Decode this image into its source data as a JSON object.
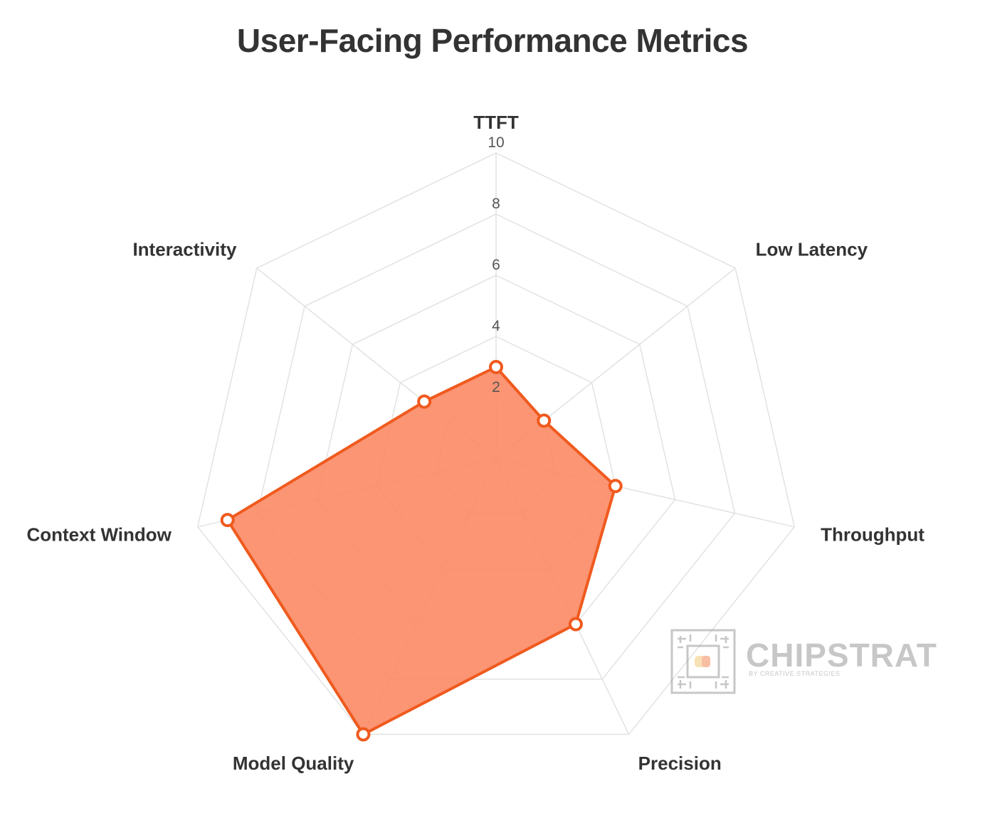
{
  "chart_data": {
    "type": "radar",
    "title": "User-Facing Performance Metrics",
    "categories": [
      "TTFT",
      "Low Latency",
      "Throughput",
      "Precision",
      "Model Quality",
      "Context Window",
      "Interactivity"
    ],
    "series": [
      {
        "values": [
          3,
          2,
          4,
          6,
          10,
          9,
          3
        ]
      }
    ],
    "rlim": [
      0,
      10
    ],
    "ticks": [
      "2",
      "4",
      "6",
      "8",
      "10"
    ],
    "grid": true,
    "colors": {
      "line": "#f05a1e",
      "fill": "#fb8a65",
      "grid": "#e2e2e2",
      "point_fill": "#ffffff"
    }
  },
  "watermark": {
    "brand": "CHIPSTRAT",
    "tagline": "BY CREATIVE STRATEGIES",
    "icon": "chip-icon"
  }
}
